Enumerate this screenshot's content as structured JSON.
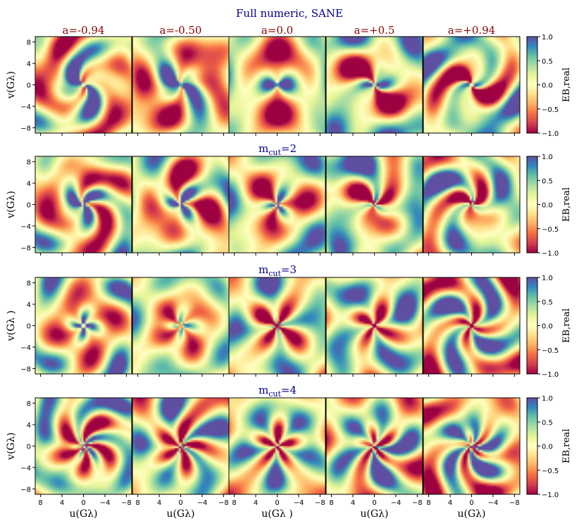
{
  "figure": {
    "title": "Full numeric, SANE"
  },
  "chart_data": {
    "type": "heatmap",
    "rows": [
      {
        "label": "Full numeric, SANE",
        "label_main": "Full numeric, SANE",
        "label_sub": ""
      },
      {
        "label": "m_cut=2",
        "label_main": "m",
        "label_sub": "cut",
        "label_suffix": "=2"
      },
      {
        "label": "m_cut=3",
        "label_main": "m",
        "label_sub": "cut",
        "label_suffix": "=3"
      },
      {
        "label": "m_cut=4",
        "label_main": "m",
        "label_sub": "cut",
        "label_suffix": "=4"
      }
    ],
    "columns": [
      "a=-0.94",
      "a=-0.50",
      "a=0.0",
      "a=+0.5",
      "a=+0.94"
    ],
    "spin_values": [
      -0.94,
      -0.5,
      0.0,
      0.5,
      0.94
    ],
    "ylabels": [
      "v(Gλ)",
      "v(Gλ)",
      "v(Gλ )",
      "v(Gλ)"
    ],
    "xlabels": [
      "u(Gλ)",
      "u(Gλ)",
      "u(Gλ )",
      "u(Gλ)",
      "u(Gλ)"
    ],
    "xticks": [
      8,
      4,
      0,
      -4,
      -8
    ],
    "xtick_labels": [
      "8",
      "4",
      "0",
      "−4",
      "−8"
    ],
    "yticks": [
      8,
      4,
      0,
      -4,
      -8
    ],
    "ytick_labels": [
      "8",
      "4",
      "0",
      "−4",
      "−8"
    ],
    "xlim": [
      9,
      -9
    ],
    "ylim": [
      -9,
      9
    ],
    "colorbar": {
      "label": "EB,real",
      "range": [
        -1.0,
        1.0
      ],
      "ticks": [
        1.0,
        0.5,
        0.0,
        -0.5,
        -1.0
      ],
      "tick_labels": [
        "1.0",
        "0.5",
        "0.0",
        "−0.5",
        "−1.0"
      ],
      "colormap": "Spectral",
      "stops": [
        "#9e0142",
        "#d53e4f",
        "#f46d43",
        "#fdae61",
        "#fee08b",
        "#ffffbf",
        "#e6f598",
        "#abdda4",
        "#66c2a5",
        "#3288bd",
        "#5e4fa2"
      ]
    },
    "grid": false
  }
}
